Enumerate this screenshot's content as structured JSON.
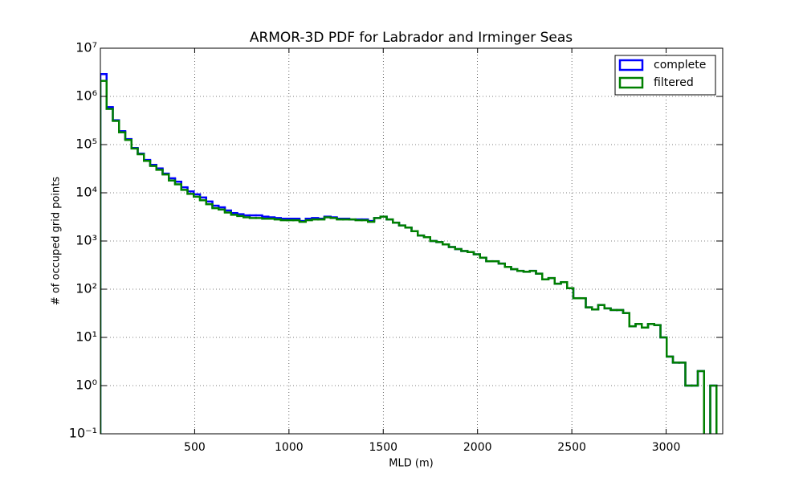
{
  "chart_data": {
    "type": "histogram",
    "title": "ARMOR-3D PDF for Labrador and Irminger Seas",
    "xlabel": "MLD (m)",
    "ylabel": "# of occuped grid points",
    "log_y": true,
    "grid": true,
    "legend": "upper right",
    "xlim": [
      0,
      3300
    ],
    "xticks": [
      500,
      1000,
      1500,
      2000,
      2500,
      3000
    ],
    "ylim": [
      0.1,
      10000000
    ],
    "yticks": [
      {
        "value": 0.1,
        "label": "10⁻¹"
      },
      {
        "value": 1,
        "label": "10⁰"
      },
      {
        "value": 10,
        "label": "10¹"
      },
      {
        "value": 100,
        "label": "10²"
      },
      {
        "value": 1000,
        "label": "10³"
      },
      {
        "value": 10000,
        "label": "10⁴"
      },
      {
        "value": 100000,
        "label": "10⁵"
      },
      {
        "value": 1000000,
        "label": "10⁶"
      },
      {
        "value": 10000000,
        "label": "10⁷"
      }
    ],
    "bins": [
      0,
      33,
      66,
      99,
      132,
      165,
      198,
      231,
      264,
      297,
      330,
      363,
      396,
      429,
      462,
      495,
      528,
      561,
      594,
      627,
      660,
      693,
      726,
      759,
      792,
      825,
      858,
      891,
      924,
      957,
      990,
      1023,
      1056,
      1089,
      1122,
      1155,
      1188,
      1221,
      1254,
      1287,
      1320,
      1353,
      1386,
      1419,
      1452,
      1485,
      1518,
      1551,
      1584,
      1617,
      1650,
      1683,
      1716,
      1749,
      1782,
      1815,
      1848,
      1881,
      1914,
      1947,
      1980,
      2013,
      2046,
      2079,
      2112,
      2145,
      2178,
      2211,
      2244,
      2277,
      2310,
      2343,
      2376,
      2409,
      2442,
      2475,
      2508,
      2541,
      2574,
      2607,
      2640,
      2673,
      2706,
      2739,
      2772,
      2805,
      2838,
      2871,
      2904,
      2937,
      2970,
      3003,
      3036,
      3069,
      3102,
      3135,
      3168,
      3201,
      3234,
      3267,
      3300
    ],
    "series": [
      {
        "name": "complete",
        "color": "#0000ff",
        "values": [
          2900000,
          600000,
          320000,
          190000,
          130000,
          85000,
          65000,
          48000,
          38000,
          32000,
          25000,
          20000,
          17000,
          13000,
          10700,
          9300,
          8000,
          6600,
          5400,
          5000,
          4300,
          3800,
          3600,
          3400,
          3400,
          3400,
          3200,
          3100,
          3000,
          2900,
          2900,
          2900,
          2600,
          2900,
          3000,
          2900,
          3200,
          3100,
          2900,
          2900,
          2800,
          2800,
          2800,
          2600,
          3000,
          3200,
          2800,
          2400,
          2100,
          1900,
          1600,
          1300,
          1200,
          1000,
          950,
          850,
          750,
          680,
          620,
          590,
          530,
          450,
          380,
          380,
          340,
          290,
          260,
          240,
          230,
          240,
          210,
          160,
          170,
          130,
          140,
          105,
          65,
          65,
          42,
          38,
          47,
          40,
          37,
          37,
          32,
          17,
          19,
          16,
          19,
          18,
          10,
          4,
          3,
          3,
          1,
          1,
          2,
          0,
          1,
          0
        ]
      },
      {
        "name": "filtered",
        "color": "#008000",
        "values": [
          2100000,
          550000,
          310000,
          180000,
          125000,
          83000,
          63000,
          46000,
          36000,
          30000,
          24000,
          18000,
          15000,
          11500,
          9500,
          8300,
          7000,
          5800,
          4800,
          4500,
          3900,
          3500,
          3300,
          3100,
          3000,
          3000,
          2900,
          2900,
          2800,
          2700,
          2700,
          2700,
          2500,
          2700,
          2800,
          2800,
          3100,
          3000,
          2800,
          2800,
          2800,
          2700,
          2700,
          2500,
          3000,
          3200,
          2800,
          2400,
          2100,
          1900,
          1600,
          1300,
          1200,
          1000,
          950,
          850,
          750,
          680,
          620,
          590,
          530,
          450,
          380,
          380,
          340,
          290,
          260,
          240,
          230,
          240,
          210,
          160,
          170,
          130,
          140,
          105,
          65,
          65,
          42,
          38,
          47,
          40,
          37,
          37,
          32,
          17,
          19,
          16,
          19,
          18,
          10,
          4,
          3,
          3,
          1,
          1,
          2,
          0,
          1,
          0
        ]
      }
    ]
  }
}
